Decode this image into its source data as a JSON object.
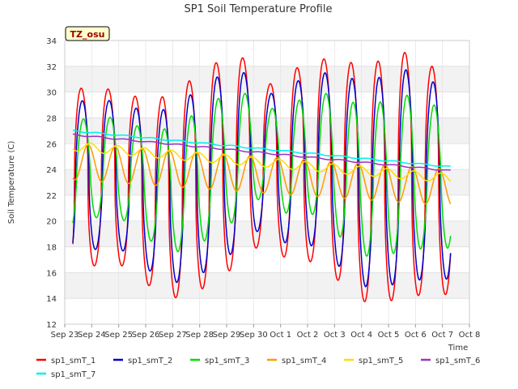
{
  "chart_data": {
    "type": "line",
    "title": "SP1 Soil Temperature Profile",
    "xlabel": "Time",
    "ylabel": "Soil Temperature (C)",
    "badge": "TZ_osu",
    "ylim": [
      12,
      34
    ],
    "yticks": [
      "12",
      "14",
      "16",
      "18",
      "20",
      "22",
      "24",
      "26",
      "28",
      "30",
      "32",
      "34"
    ],
    "xlim": [
      0,
      15
    ],
    "xticks": [
      "Sep 23",
      "Sep 24",
      "Sep 25",
      "Sep 26",
      "Sep 27",
      "Sep 28",
      "Sep 29",
      "Sep 30",
      "Oct 1",
      "Oct 2",
      "Oct 3",
      "Oct 4",
      "Oct 5",
      "Oct 6",
      "Oct 7",
      "Oct 8"
    ],
    "day_min": [
      15.5,
      17.2,
      16.1,
      14.3,
      13.9,
      15.3,
      16.7,
      18.7,
      16.3,
      17.2,
      14.3,
      13.4,
      14.1,
      14.3
    ],
    "day_max": [
      30.3,
      30.3,
      29.7,
      29.5,
      30.7,
      32.2,
      32.9,
      30.5,
      31.8,
      32.6,
      32.3,
      32.3,
      33.2,
      32.0
    ],
    "series": [
      {
        "name": "sp1_smT_1",
        "color": "#ff0000",
        "start": 0.3,
        "end": 14.3,
        "phase": 0.61,
        "amp_scale": 1.0,
        "min_offset": 0.0,
        "sharp": 2.2
      },
      {
        "name": "sp1_smT_2",
        "color": "#0000cc",
        "start": 0.3,
        "end": 14.3,
        "phase": 0.65,
        "amp_scale": 0.85,
        "min_offset": 1.2,
        "sharp": 1.8
      },
      {
        "name": "sp1_smT_3",
        "color": "#00dd00",
        "start": 0.3,
        "end": 14.3,
        "phase": 0.69,
        "amp_scale": 0.62,
        "min_offset": 3.6,
        "sharp": 1.4
      },
      {
        "name": "sp1_smT_4",
        "color": "#ff9900",
        "start": 0.3,
        "end": 14.3,
        "phase": 0.87,
        "amp": 1.4,
        "base_from": 24.6,
        "base_to": 22.6
      },
      {
        "name": "sp1_smT_5",
        "color": "#ffdd00",
        "start": 0.3,
        "end": 14.3,
        "phase": 0.95,
        "amp": 0.35,
        "base_from": 25.8,
        "base_to": 23.3
      },
      {
        "name": "sp1_smT_6",
        "color": "#9933cc",
        "start": 0.3,
        "end": 14.3,
        "from": 26.7,
        "to": 23.9
      },
      {
        "name": "sp1_smT_7",
        "color": "#00eeee",
        "start": 0.3,
        "end": 14.3,
        "from": 27.0,
        "to": 24.2
      }
    ]
  }
}
